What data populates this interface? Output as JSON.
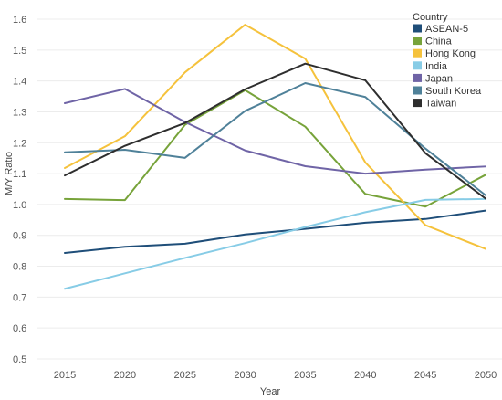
{
  "chart_data": {
    "type": "line",
    "xlabel": "Year",
    "ylabel": "M/Y Ratio",
    "x": [
      2015,
      2020,
      2025,
      2030,
      2035,
      2040,
      2045,
      2050
    ],
    "ylim": [
      0.5,
      1.6
    ],
    "yticks": [
      "0.5",
      "0.6",
      "0.7",
      "0.8",
      "0.9",
      "1.0",
      "1.1",
      "1.2",
      "1.3",
      "1.4",
      "1.5",
      "1.6"
    ],
    "grid": "horizontal",
    "legend_position": "top-right",
    "legend_title": "Country",
    "series": [
      {
        "name": "ASEAN-5",
        "color": "#1f4e79",
        "values": [
          0.843,
          0.863,
          0.873,
          0.903,
          0.921,
          0.941,
          0.953,
          0.98
        ]
      },
      {
        "name": "China",
        "color": "#77a33a",
        "values": [
          1.018,
          1.014,
          1.258,
          1.37,
          1.252,
          1.034,
          0.993,
          1.096
        ]
      },
      {
        "name": "Hong Kong",
        "color": "#f5c23c",
        "values": [
          1.118,
          1.221,
          1.428,
          1.582,
          1.472,
          1.136,
          0.933,
          0.856
        ]
      },
      {
        "name": "India",
        "color": "#87cce6",
        "values": [
          0.727,
          0.777,
          0.827,
          0.875,
          0.927,
          0.975,
          1.015,
          1.018
        ]
      },
      {
        "name": "Japan",
        "color": "#6f64a6",
        "values": [
          1.328,
          1.374,
          1.267,
          1.175,
          1.124,
          1.1,
          1.113,
          1.123
        ]
      },
      {
        "name": "South Korea",
        "color": "#4f8199",
        "values": [
          1.169,
          1.177,
          1.151,
          1.303,
          1.393,
          1.348,
          1.181,
          1.03
        ]
      },
      {
        "name": "Taiwan",
        "color": "#2e2e2e",
        "values": [
          1.094,
          1.19,
          1.264,
          1.373,
          1.456,
          1.402,
          1.166,
          1.019
        ]
      }
    ]
  }
}
